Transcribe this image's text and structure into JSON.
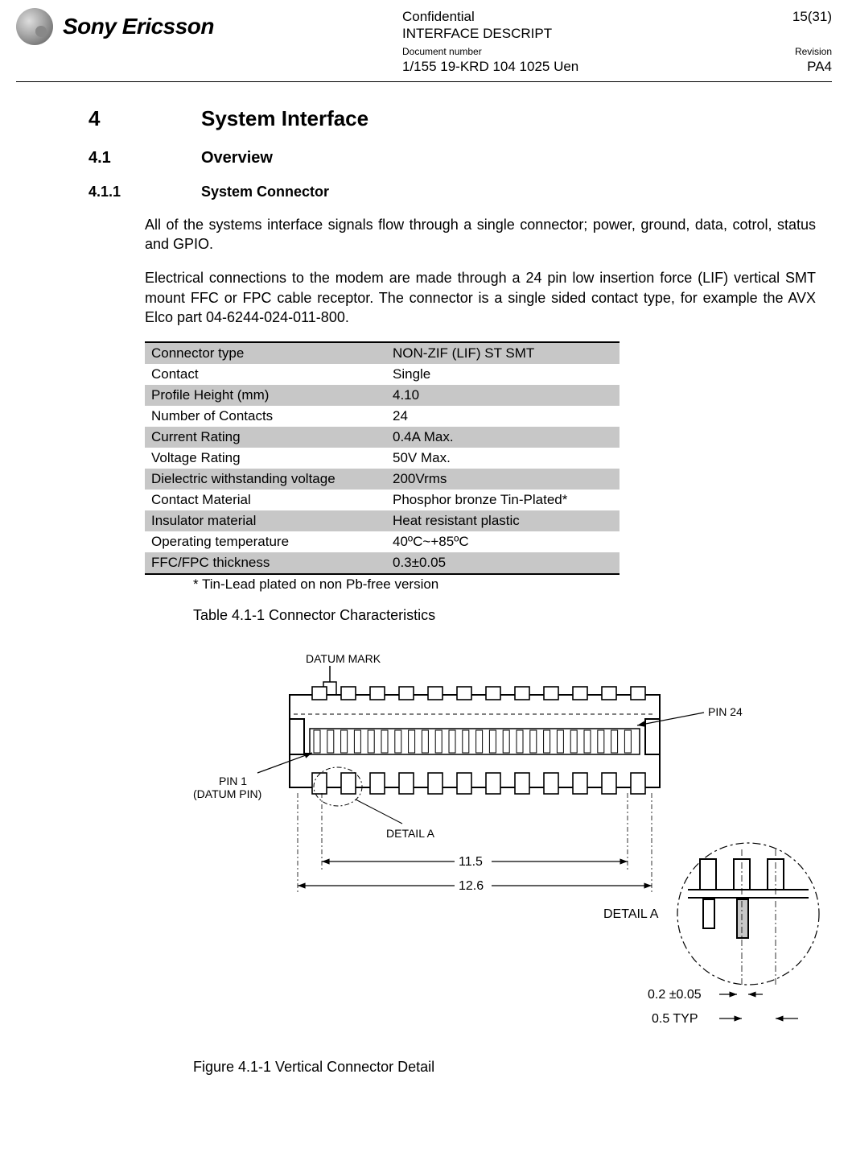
{
  "header": {
    "brand": "Sony Ericsson",
    "classification": "Confidential",
    "doc_title": "INTERFACE DESCRIPT",
    "page_num": "15(31)",
    "doc_number_label": "Document number",
    "doc_number": "1/155 19-KRD 104 1025 Uen",
    "revision_label": "Revision",
    "revision": "PA4"
  },
  "section": {
    "num": "4",
    "title": "System Interface",
    "sub_num": "4.1",
    "sub_title": "Overview",
    "subsub_num": "4.1.1",
    "subsub_title": "System Connector"
  },
  "paragraphs": {
    "p1": "All of the systems interface signals flow through a single connector; power, ground, data, cotrol, status and GPIO.",
    "p2": "Electrical connections to the modem are made through a 24 pin low insertion force (LIF) vertical SMT mount FFC or FPC cable receptor.  The connector is a single sided contact type, for example the AVX Elco part 04-6244-024-011-800."
  },
  "table": {
    "rows": [
      {
        "k": "Connector type",
        "v": "NON-ZIF (LIF) ST SMT",
        "shade": true
      },
      {
        "k": "Contact",
        "v": "Single",
        "shade": false
      },
      {
        "k": "Profile Height (mm)",
        "v": "4.10",
        "shade": true
      },
      {
        "k": "Number of Contacts",
        "v": "24",
        "shade": false
      },
      {
        "k": "Current Rating",
        "v": "0.4A Max.",
        "shade": true
      },
      {
        "k": "Voltage Rating",
        "v": "50V Max.",
        "shade": false
      },
      {
        "k": "Dielectric withstanding voltage",
        "v": "200Vrms",
        "shade": true
      },
      {
        "k": "Contact Material",
        "v": "Phosphor bronze Tin-Plated*",
        "shade": false
      },
      {
        "k": "Insulator material",
        "v": "Heat resistant plastic",
        "shade": true
      },
      {
        "k": "Operating temperature",
        "v": "40ºC~+85ºC",
        "shade": false
      },
      {
        "k": "FFC/FPC thickness",
        "v": "0.3±0.05",
        "shade": true
      }
    ],
    "footnote": "* Tin-Lead plated on non Pb-free version",
    "caption": "Table 4.1-1  Connector Characteristics"
  },
  "figure": {
    "labels": {
      "datum_mark": "DATUM MARK",
      "pin24": "PIN 24",
      "pin1a": "PIN 1",
      "pin1b": "(DATUM PIN)",
      "detail_a1": "DETAIL A",
      "detail_a2": "DETAIL A",
      "dim_11_5": "11.5",
      "dim_12_6": "12.6",
      "dim_02": "0.2 ±0.05",
      "dim_05": "0.5 TYP"
    },
    "caption": "Figure 4.1-1  Vertical Connector Detail",
    "colors": {
      "stroke": "#000000",
      "fill_light": "#ffffff",
      "fill_grey": "#c7c7c7"
    }
  }
}
